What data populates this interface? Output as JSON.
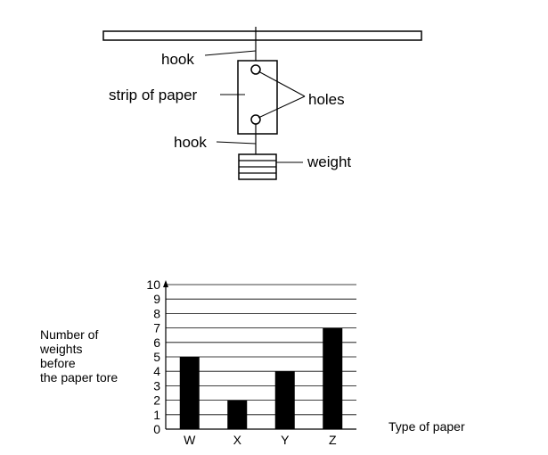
{
  "diagram": {
    "hook_top_label": "hook",
    "strip_label": "strip of paper",
    "holes_label": "holes",
    "hook_bottom_label": "hook",
    "weight_label": "weight"
  },
  "chart_data": {
    "type": "bar",
    "categories": [
      "W",
      "X",
      "Y",
      "Z"
    ],
    "values": [
      5,
      2,
      4,
      7
    ],
    "ylabel": "Number of weights before the paper tore",
    "ylabel_lines": [
      "Number of",
      "weights",
      "before",
      "the paper tore"
    ],
    "xlabel": "Type of paper",
    "ylim": [
      0,
      10
    ],
    "yticks": [
      0,
      1,
      2,
      3,
      4,
      5,
      6,
      7,
      8,
      9,
      10
    ],
    "grid": true,
    "bar_color": "#000000"
  }
}
